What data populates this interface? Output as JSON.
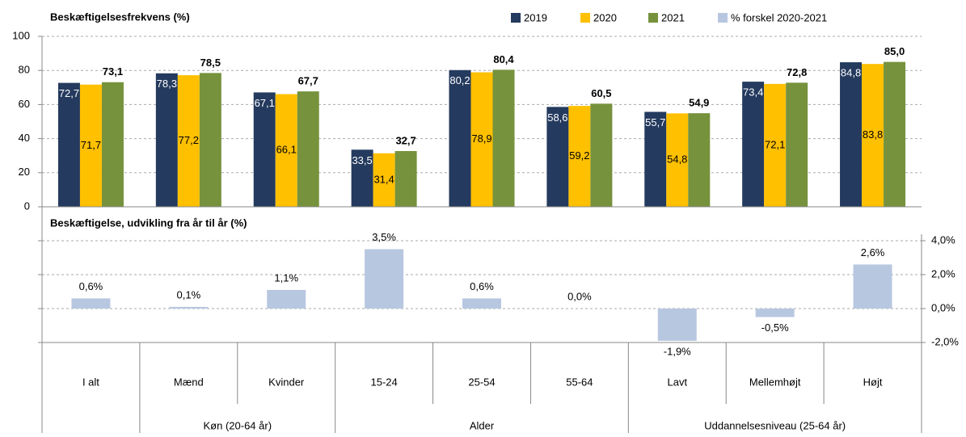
{
  "chart_data": [
    {
      "type": "bar",
      "title": "Beskæftigelsesfrekvens (%)",
      "categories": [
        "I alt",
        "Mænd",
        "Kvinder",
        "15-24",
        "25-54",
        "55-64",
        "Lavt",
        "Mellemhøjt",
        "Højt"
      ],
      "category_groups": [
        null,
        "Køn (20-64 år)",
        "Køn (20-64 år)",
        "Alder",
        "Alder",
        "Alder",
        "Uddannelsesniveau (25-64 år)",
        "Uddannelsesniveau (25-64 år)",
        "Uddannelsesniveau (25-64 år)"
      ],
      "series": [
        {
          "name": "2019",
          "color": "#243a5e",
          "values": [
            72.7,
            78.3,
            67.1,
            33.5,
            80.2,
            58.6,
            55.7,
            73.4,
            84.8
          ],
          "value_labels": [
            "72,7",
            "78,3",
            "67,1",
            "33,5",
            "80,2",
            "58,6",
            "55,7",
            "73,4",
            "84,8"
          ]
        },
        {
          "name": "2020",
          "color": "#ffc000",
          "values": [
            71.7,
            77.2,
            66.1,
            31.4,
            78.9,
            59.2,
            54.8,
            72.1,
            83.8
          ],
          "value_labels": [
            "71,7",
            "77,2",
            "66,1",
            "31,4",
            "78,9",
            "59,2",
            "54,8",
            "72,1",
            "83,8"
          ]
        },
        {
          "name": "2021",
          "color": "#76923c",
          "values": [
            73.1,
            78.5,
            67.7,
            32.7,
            80.4,
            60.5,
            54.9,
            72.8,
            85.0
          ],
          "value_labels": [
            "73,1",
            "78,5",
            "67,7",
            "32,7",
            "80,4",
            "60,5",
            "54,9",
            "72,8",
            "85,0"
          ]
        }
      ],
      "ylim": [
        0,
        100
      ],
      "yticks": [
        0,
        20,
        40,
        60,
        80,
        100
      ],
      "grid": true,
      "legend": "top-right"
    },
    {
      "type": "bar",
      "title": "Beskæftigelse, udvikling fra år til år (%)",
      "series": [
        {
          "name": "% forskel 2020-2021",
          "color": "#b8c7e0",
          "axis": "y2",
          "values": [
            0.6,
            0.1,
            1.1,
            3.5,
            0.6,
            0.0,
            -1.9,
            -0.5,
            2.6
          ],
          "value_labels": [
            "0,6%",
            "0,1%",
            "1,1%",
            "3,5%",
            "0,6%",
            "0,0%",
            "-1,9%",
            "-0,5%",
            "2,6%"
          ]
        }
      ],
      "y2lim": [
        -2,
        6
      ],
      "y2ticks": [
        {
          "value": -2,
          "label": "-2,0%"
        },
        {
          "value": 0,
          "label": "0,0%"
        },
        {
          "value": 2,
          "label": "2,0%"
        },
        {
          "value": 4,
          "label": "4,0%"
        }
      ],
      "grid": true
    }
  ]
}
